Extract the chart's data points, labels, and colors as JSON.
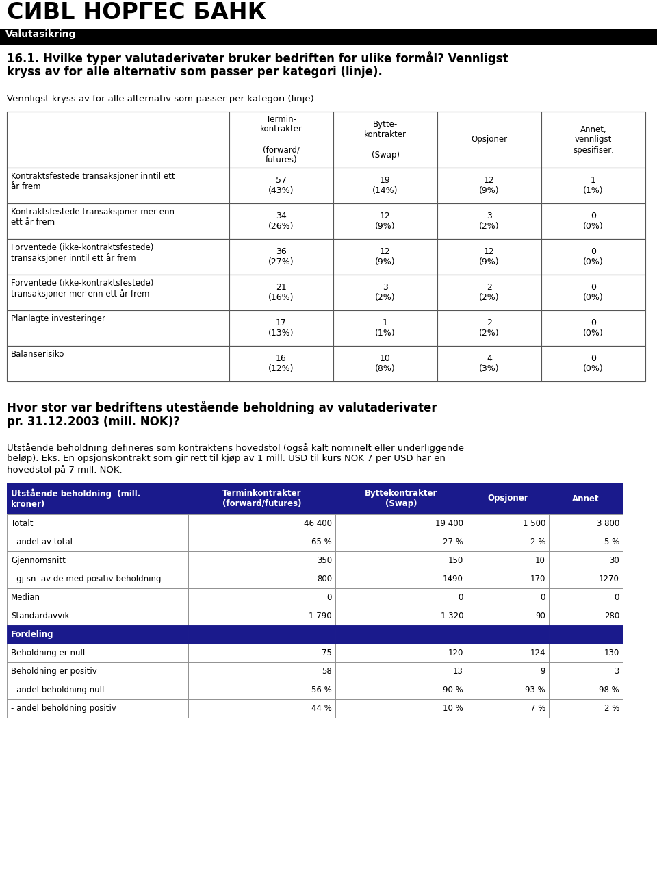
{
  "section_label": "Valutasikring",
  "question_bold_line1": "16.1. Hvilke typer valutaderivater bruker bedriften for ulike formål? Vennligst",
  "question_bold_line2": "kryss av for alle alternativ som passer per kategori (linje).",
  "instruction": "Vennligst kryss av for alle alternativ som passer per kategori (linje).",
  "table1_col_headers": [
    "Termin-\nkontrakter\n\n(forward/\nfutures)",
    "Bytte-\nkontrakter\n\n(Swap)",
    "Opsjoner",
    "Annet,\nvennligst\nspesifiser:"
  ],
  "table1_rows": [
    {
      "label": "Kontraktsfestede transaksjoner inntil ett\når frem",
      "values": [
        "57\n(43%)",
        "19\n(14%)",
        "12\n(9%)",
        "1\n(1%)"
      ]
    },
    {
      "label": "Kontraktsfestede transaksjoner mer enn\nett år frem",
      "values": [
        "34\n(26%)",
        "12\n(9%)",
        "3\n(2%)",
        "0\n(0%)"
      ]
    },
    {
      "label": "Forventede (ikke-kontraktsfestede)\ntransaksjoner inntil ett år frem",
      "values": [
        "36\n(27%)",
        "12\n(9%)",
        "12\n(9%)",
        "0\n(0%)"
      ]
    },
    {
      "label": "Forventede (ikke-kontraktsfestede)\ntransaksjoner mer enn ett år frem",
      "values": [
        "21\n(16%)",
        "3\n(2%)",
        "2\n(2%)",
        "0\n(0%)"
      ]
    },
    {
      "label": "Planlagte investeringer",
      "values": [
        "17\n(13%)",
        "1\n(1%)",
        "2\n(2%)",
        "0\n(0%)"
      ]
    },
    {
      "label": "Balanserisiko",
      "values": [
        "16\n(12%)",
        "10\n(8%)",
        "4\n(3%)",
        "0\n(0%)"
      ]
    }
  ],
  "question2_line1": "Hvor stor var bedriftens utestående beholdning av valutaderivater",
  "question2_line2": "pr. 31.12.2003 (mill. NOK)?",
  "paragraph2_line1": "Utstående beholdning defineres som kontraktens hovedstol (også kalt nominelt eller underliggende",
  "paragraph2_line2": "beløp). Eks: En opsjonskontrakt som gir rett til kjøp av 1 mill. USD til kurs NOK 7 per USD har en",
  "paragraph2_line3": "hovedstol på 7 mill. NOK.",
  "table2_hdr_label": "Utstående beholdning  (mill.\nkroner)",
  "table2_hdr_cols": [
    "Terminkontrakter\n(forward/futures)",
    "Byttekontrakter\n(Swap)",
    "Opsjoner",
    "Annet"
  ],
  "table2_rows": [
    {
      "label": "Totalt",
      "values": [
        "46 400",
        "19 400",
        "1 500",
        "3 800"
      ],
      "section": false
    },
    {
      "label": "- andel av total",
      "values": [
        "65 %",
        "27 %",
        "2 %",
        "5 %"
      ],
      "section": false
    },
    {
      "label": "Gjennomsnitt",
      "values": [
        "350",
        "150",
        "10",
        "30"
      ],
      "section": false
    },
    {
      "label": "- gj.sn. av de med positiv beholdning",
      "values": [
        "800",
        "1490",
        "170",
        "1270"
      ],
      "section": false
    },
    {
      "label": "Median",
      "values": [
        "0",
        "0",
        "0",
        "0"
      ],
      "section": false
    },
    {
      "label": "Standardavvik",
      "values": [
        "1 790",
        "1 320",
        "90",
        "280"
      ],
      "section": false
    },
    {
      "label": "Fordeling",
      "values": [
        "",
        "",
        "",
        ""
      ],
      "section": true
    },
    {
      "label": "Beholdning er null",
      "values": [
        "75",
        "120",
        "124",
        "130"
      ],
      "section": false
    },
    {
      "label": "Beholdning er positiv",
      "values": [
        "58",
        "13",
        "9",
        "3"
      ],
      "section": false
    },
    {
      "label": "- andel beholdning null",
      "values": [
        "56 %",
        "90 %",
        "93 %",
        "98 %"
      ],
      "section": false
    },
    {
      "label": "- andel beholdning positiv",
      "values": [
        "44 %",
        "10 %",
        "7 %",
        "2 %"
      ],
      "section": false
    }
  ]
}
